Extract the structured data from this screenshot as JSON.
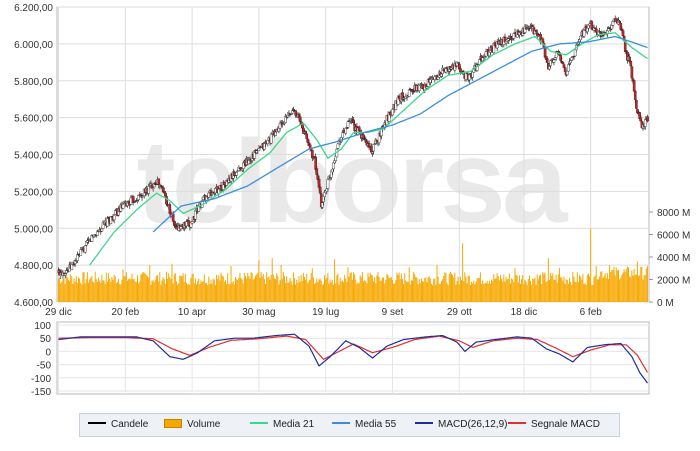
{
  "watermark": "telborsa",
  "chart_data": {
    "type": "candlestick",
    "price_axis": {
      "ticks": [
        "6.200,00",
        "6.000,00",
        "5.800,00",
        "5.600,00",
        "5.400,00",
        "5.200,00",
        "5.000,00",
        "4.800,00",
        "4.600,00"
      ],
      "ylim": [
        4600,
        6200
      ]
    },
    "volume_axis": {
      "ticks": [
        "8000 M",
        "6000 M",
        "4000 M",
        "2000 M",
        "0 M"
      ],
      "ylim": [
        0,
        8000
      ]
    },
    "macd_axis": {
      "ticks": [
        "100",
        "50",
        "0",
        "-50",
        "-100",
        "-150"
      ],
      "ylim": [
        -150,
        100
      ]
    },
    "x_ticks": [
      "29 dic",
      "20 feb",
      "10 apr",
      "30 mag",
      "19 lug",
      "9 set",
      "29 ott",
      "18 dic",
      "6 feb"
    ],
    "price_anchors": [
      {
        "x": 0,
        "v": 4760
      },
      {
        "x": 10,
        "v": 4780
      },
      {
        "x": 30,
        "v": 4950
      },
      {
        "x": 45,
        "v": 5040
      },
      {
        "x": 60,
        "v": 5130
      },
      {
        "x": 75,
        "v": 5180
      },
      {
        "x": 88,
        "v": 5260
      },
      {
        "x": 95,
        "v": 5190
      },
      {
        "x": 105,
        "v": 5000
      },
      {
        "x": 118,
        "v": 5020
      },
      {
        "x": 130,
        "v": 5160
      },
      {
        "x": 150,
        "v": 5240
      },
      {
        "x": 165,
        "v": 5340
      },
      {
        "x": 185,
        "v": 5450
      },
      {
        "x": 200,
        "v": 5560
      },
      {
        "x": 212,
        "v": 5650
      },
      {
        "x": 222,
        "v": 5500
      },
      {
        "x": 230,
        "v": 5370
      },
      {
        "x": 236,
        "v": 5130
      },
      {
        "x": 244,
        "v": 5290
      },
      {
        "x": 252,
        "v": 5480
      },
      {
        "x": 262,
        "v": 5580
      },
      {
        "x": 272,
        "v": 5500
      },
      {
        "x": 282,
        "v": 5420
      },
      {
        "x": 292,
        "v": 5560
      },
      {
        "x": 305,
        "v": 5700
      },
      {
        "x": 318,
        "v": 5750
      },
      {
        "x": 330,
        "v": 5780
      },
      {
        "x": 345,
        "v": 5850
      },
      {
        "x": 358,
        "v": 5880
      },
      {
        "x": 368,
        "v": 5810
      },
      {
        "x": 380,
        "v": 5920
      },
      {
        "x": 392,
        "v": 5990
      },
      {
        "x": 405,
        "v": 6030
      },
      {
        "x": 415,
        "v": 6070
      },
      {
        "x": 425,
        "v": 6080
      },
      {
        "x": 433,
        "v": 6030
      },
      {
        "x": 440,
        "v": 5870
      },
      {
        "x": 448,
        "v": 5950
      },
      {
        "x": 456,
        "v": 5850
      },
      {
        "x": 462,
        "v": 5930
      },
      {
        "x": 470,
        "v": 6060
      },
      {
        "x": 478,
        "v": 6100
      },
      {
        "x": 486,
        "v": 6050
      },
      {
        "x": 494,
        "v": 6080
      },
      {
        "x": 500,
        "v": 6130
      },
      {
        "x": 504,
        "v": 6100
      },
      {
        "x": 510,
        "v": 5950
      },
      {
        "x": 514,
        "v": 5870
      },
      {
        "x": 519,
        "v": 5650
      },
      {
        "x": 524,
        "v": 5560
      },
      {
        "x": 529,
        "v": 5590
      }
    ],
    "ma21_anchors": [
      {
        "x": 28,
        "v": 4800
      },
      {
        "x": 50,
        "v": 4980
      },
      {
        "x": 72,
        "v": 5110
      },
      {
        "x": 88,
        "v": 5190
      },
      {
        "x": 100,
        "v": 5150
      },
      {
        "x": 112,
        "v": 5080
      },
      {
        "x": 130,
        "v": 5130
      },
      {
        "x": 150,
        "v": 5210
      },
      {
        "x": 170,
        "v": 5320
      },
      {
        "x": 190,
        "v": 5410
      },
      {
        "x": 205,
        "v": 5520
      },
      {
        "x": 220,
        "v": 5570
      },
      {
        "x": 232,
        "v": 5480
      },
      {
        "x": 242,
        "v": 5380
      },
      {
        "x": 254,
        "v": 5430
      },
      {
        "x": 265,
        "v": 5520
      },
      {
        "x": 278,
        "v": 5520
      },
      {
        "x": 292,
        "v": 5540
      },
      {
        "x": 310,
        "v": 5640
      },
      {
        "x": 330,
        "v": 5750
      },
      {
        "x": 350,
        "v": 5830
      },
      {
        "x": 370,
        "v": 5850
      },
      {
        "x": 390,
        "v": 5940
      },
      {
        "x": 410,
        "v": 6000
      },
      {
        "x": 428,
        "v": 6040
      },
      {
        "x": 442,
        "v": 5960
      },
      {
        "x": 456,
        "v": 5940
      },
      {
        "x": 470,
        "v": 6000
      },
      {
        "x": 485,
        "v": 6050
      },
      {
        "x": 500,
        "v": 6060
      },
      {
        "x": 515,
        "v": 5980
      },
      {
        "x": 529,
        "v": 5920
      }
    ],
    "ma55_anchors": [
      {
        "x": 85,
        "v": 4980
      },
      {
        "x": 110,
        "v": 5120
      },
      {
        "x": 140,
        "v": 5160
      },
      {
        "x": 170,
        "v": 5230
      },
      {
        "x": 200,
        "v": 5340
      },
      {
        "x": 225,
        "v": 5430
      },
      {
        "x": 250,
        "v": 5470
      },
      {
        "x": 275,
        "v": 5520
      },
      {
        "x": 300,
        "v": 5560
      },
      {
        "x": 325,
        "v": 5620
      },
      {
        "x": 350,
        "v": 5720
      },
      {
        "x": 375,
        "v": 5800
      },
      {
        "x": 400,
        "v": 5880
      },
      {
        "x": 425,
        "v": 5960
      },
      {
        "x": 450,
        "v": 6000
      },
      {
        "x": 475,
        "v": 6010
      },
      {
        "x": 500,
        "v": 6040
      },
      {
        "x": 515,
        "v": 6010
      },
      {
        "x": 529,
        "v": 5980
      }
    ],
    "macd_anchors": [
      {
        "x": 0,
        "v": 45
      },
      {
        "x": 20,
        "v": 55
      },
      {
        "x": 45,
        "v": 55
      },
      {
        "x": 70,
        "v": 55
      },
      {
        "x": 85,
        "v": 40
      },
      {
        "x": 100,
        "v": -20
      },
      {
        "x": 112,
        "v": -30
      },
      {
        "x": 125,
        "v": -5
      },
      {
        "x": 140,
        "v": 40
      },
      {
        "x": 158,
        "v": 50
      },
      {
        "x": 175,
        "v": 50
      },
      {
        "x": 195,
        "v": 60
      },
      {
        "x": 212,
        "v": 65
      },
      {
        "x": 225,
        "v": 20
      },
      {
        "x": 234,
        "v": -55
      },
      {
        "x": 244,
        "v": -20
      },
      {
        "x": 258,
        "v": 40
      },
      {
        "x": 270,
        "v": 15
      },
      {
        "x": 282,
        "v": -25
      },
      {
        "x": 295,
        "v": 20
      },
      {
        "x": 310,
        "v": 45
      },
      {
        "x": 330,
        "v": 55
      },
      {
        "x": 345,
        "v": 60
      },
      {
        "x": 358,
        "v": 35
      },
      {
        "x": 365,
        "v": 0
      },
      {
        "x": 375,
        "v": 35
      },
      {
        "x": 392,
        "v": 45
      },
      {
        "x": 412,
        "v": 55
      },
      {
        "x": 425,
        "v": 50
      },
      {
        "x": 438,
        "v": 10
      },
      {
        "x": 450,
        "v": -10
      },
      {
        "x": 462,
        "v": -40
      },
      {
        "x": 475,
        "v": 15
      },
      {
        "x": 490,
        "v": 25
      },
      {
        "x": 505,
        "v": 30
      },
      {
        "x": 515,
        "v": -20
      },
      {
        "x": 522,
        "v": -80
      },
      {
        "x": 529,
        "v": -120
      }
    ],
    "signal_anchors": [
      {
        "x": 0,
        "v": 50
      },
      {
        "x": 30,
        "v": 52
      },
      {
        "x": 60,
        "v": 52
      },
      {
        "x": 85,
        "v": 48
      },
      {
        "x": 102,
        "v": 10
      },
      {
        "x": 118,
        "v": -15
      },
      {
        "x": 135,
        "v": 15
      },
      {
        "x": 155,
        "v": 42
      },
      {
        "x": 180,
        "v": 48
      },
      {
        "x": 205,
        "v": 58
      },
      {
        "x": 222,
        "v": 45
      },
      {
        "x": 238,
        "v": -30
      },
      {
        "x": 252,
        "v": 0
      },
      {
        "x": 265,
        "v": 28
      },
      {
        "x": 282,
        "v": -5
      },
      {
        "x": 300,
        "v": 15
      },
      {
        "x": 320,
        "v": 45
      },
      {
        "x": 342,
        "v": 58
      },
      {
        "x": 360,
        "v": 40
      },
      {
        "x": 372,
        "v": 15
      },
      {
        "x": 390,
        "v": 40
      },
      {
        "x": 412,
        "v": 50
      },
      {
        "x": 430,
        "v": 45
      },
      {
        "x": 448,
        "v": 10
      },
      {
        "x": 462,
        "v": -20
      },
      {
        "x": 478,
        "v": 5
      },
      {
        "x": 495,
        "v": 25
      },
      {
        "x": 510,
        "v": 25
      },
      {
        "x": 520,
        "v": -15
      },
      {
        "x": 529,
        "v": -80
      }
    ],
    "volume_spikes": [
      {
        "x": 58,
        "v": 2900
      },
      {
        "x": 82,
        "v": 3300
      },
      {
        "x": 102,
        "v": 3400
      },
      {
        "x": 155,
        "v": 3200
      },
      {
        "x": 180,
        "v": 3700
      },
      {
        "x": 192,
        "v": 3900
      },
      {
        "x": 200,
        "v": 3300
      },
      {
        "x": 228,
        "v": 3000
      },
      {
        "x": 248,
        "v": 3800
      },
      {
        "x": 260,
        "v": 3100
      },
      {
        "x": 280,
        "v": 2600
      },
      {
        "x": 315,
        "v": 3100
      },
      {
        "x": 340,
        "v": 3300
      },
      {
        "x": 363,
        "v": 5200
      },
      {
        "x": 410,
        "v": 3000
      },
      {
        "x": 440,
        "v": 3900
      },
      {
        "x": 450,
        "v": 3000
      },
      {
        "x": 478,
        "v": 6500
      },
      {
        "x": 495,
        "v": 3300
      },
      {
        "x": 520,
        "v": 3600
      }
    ]
  },
  "legend": [
    {
      "label": "Candele",
      "color": "#000000",
      "kind": "line"
    },
    {
      "label": "Volume",
      "color": "#f6a800",
      "kind": "box"
    },
    {
      "label": "Media 21",
      "color": "#38d98a",
      "kind": "line"
    },
    {
      "label": "Media 55",
      "color": "#3a8fdc",
      "kind": "line"
    },
    {
      "label": "MACD(26,12,9)",
      "color": "#1f2d9a",
      "kind": "line"
    },
    {
      "label": "Segnale MACD",
      "color": "#e03030",
      "kind": "line"
    }
  ]
}
